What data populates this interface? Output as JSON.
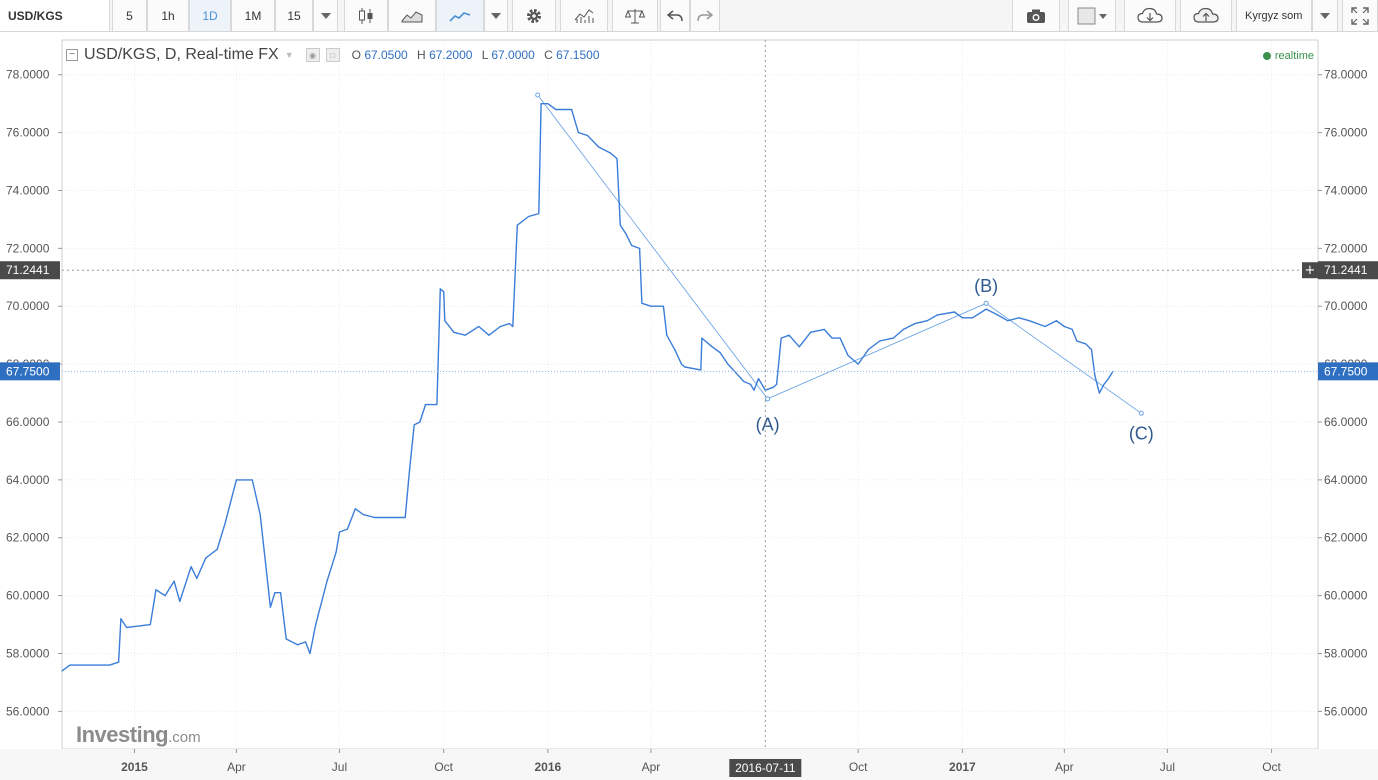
{
  "toolbar": {
    "symbol": "USD/KGS",
    "intervals": [
      "5",
      "1h",
      "1D",
      "1M",
      "15"
    ],
    "active_interval": "1D",
    "currency": "Kyrgyz som",
    "icons": [
      "dropdown-icon",
      "candles-icon",
      "area-icon",
      "line-icon",
      "dropdown-icon",
      "gear-icon",
      "indicators-icon",
      "compare-icon",
      "undo-icon",
      "redo-icon",
      "camera-icon",
      "color-swatch-icon",
      "cloud-download-icon",
      "cloud-upload-icon",
      "fullscreen-icon"
    ]
  },
  "legend": {
    "title": "USD/KGS, D, Real-time FX",
    "o_label": "O",
    "o": "67.0500",
    "h_label": "H",
    "h": "67.2000",
    "l_label": "L",
    "l": "67.0000",
    "c_label": "C",
    "c": "67.1500",
    "realtime": "realtime"
  },
  "crosshair": {
    "price": "71.2441",
    "date": "2016-07-11"
  },
  "last_price": "67.7500",
  "logo": {
    "bold": "Investing",
    "suffix": ".com"
  },
  "colors": {
    "line": "#3b7dd8",
    "last_price": "#2f6fc2",
    "crosshair_label": "#4a4a4a",
    "realtime": "#39914b"
  },
  "chart_data": {
    "type": "line",
    "y_ticks": [
      "78.0000",
      "76.0000",
      "74.0000",
      "72.0000",
      "70.0000",
      "68.0000",
      "66.0000",
      "64.0000",
      "62.0000",
      "60.0000",
      "58.0000",
      "56.0000"
    ],
    "ylim": [
      54.7,
      79.2
    ],
    "x_ticks": [
      {
        "label": "2015",
        "date": "2015-01-01",
        "major": true
      },
      {
        "label": "Apr",
        "date": "2015-04-01"
      },
      {
        "label": "Jul",
        "date": "2015-07-01"
      },
      {
        "label": "Oct",
        "date": "2015-10-01"
      },
      {
        "label": "2016",
        "date": "2016-01-01",
        "major": true
      },
      {
        "label": "Apr",
        "date": "2016-04-01"
      },
      {
        "label": "Oct",
        "date": "2016-10-01"
      },
      {
        "label": "2017",
        "date": "2017-01-01",
        "major": true
      },
      {
        "label": "Apr",
        "date": "2017-04-01"
      },
      {
        "label": "Jul",
        "date": "2017-07-01"
      },
      {
        "label": "Oct",
        "date": "2017-10-01"
      }
    ],
    "xlim": [
      "2014-10-29",
      "2017-11-11"
    ],
    "series": [
      {
        "points": [
          [
            "2014-10-29",
            57.4
          ],
          [
            "2014-11-05",
            57.6
          ],
          [
            "2014-11-20",
            57.6
          ],
          [
            "2014-12-10",
            57.6
          ],
          [
            "2014-12-18",
            57.7
          ],
          [
            "2014-12-20",
            59.2
          ],
          [
            "2014-12-25",
            58.9
          ],
          [
            "2015-01-15",
            59.0
          ],
          [
            "2015-01-20",
            60.2
          ],
          [
            "2015-01-28",
            60.0
          ],
          [
            "2015-02-05",
            60.5
          ],
          [
            "2015-02-10",
            59.8
          ],
          [
            "2015-02-20",
            61.0
          ],
          [
            "2015-02-25",
            60.6
          ],
          [
            "2015-03-05",
            61.3
          ],
          [
            "2015-03-15",
            61.6
          ],
          [
            "2015-03-22",
            62.5
          ],
          [
            "2015-03-28",
            63.4
          ],
          [
            "2015-04-01",
            64.0
          ],
          [
            "2015-04-15",
            64.0
          ],
          [
            "2015-04-22",
            62.8
          ],
          [
            "2015-05-01",
            59.6
          ],
          [
            "2015-05-05",
            60.1
          ],
          [
            "2015-05-10",
            60.1
          ],
          [
            "2015-05-15",
            58.5
          ],
          [
            "2015-05-25",
            58.3
          ],
          [
            "2015-06-01",
            58.4
          ],
          [
            "2015-06-05",
            58.0
          ],
          [
            "2015-06-10",
            59.0
          ],
          [
            "2015-06-20",
            60.5
          ],
          [
            "2015-06-28",
            61.5
          ],
          [
            "2015-07-01",
            62.2
          ],
          [
            "2015-07-08",
            62.3
          ],
          [
            "2015-07-15",
            63.0
          ],
          [
            "2015-07-22",
            62.8
          ],
          [
            "2015-08-01",
            62.7
          ],
          [
            "2015-08-20",
            62.7
          ],
          [
            "2015-08-28",
            62.7
          ],
          [
            "2015-09-01",
            64.4
          ],
          [
            "2015-09-05",
            65.9
          ],
          [
            "2015-09-10",
            66.0
          ],
          [
            "2015-09-15",
            66.6
          ],
          [
            "2015-09-25",
            66.6
          ],
          [
            "2015-09-28",
            70.6
          ],
          [
            "2015-10-01",
            70.5
          ],
          [
            "2015-10-02",
            69.5
          ],
          [
            "2015-10-10",
            69.1
          ],
          [
            "2015-10-20",
            69.0
          ],
          [
            "2015-11-01",
            69.3
          ],
          [
            "2015-11-10",
            69.0
          ],
          [
            "2015-11-20",
            69.3
          ],
          [
            "2015-11-28",
            69.4
          ],
          [
            "2015-12-01",
            69.3
          ],
          [
            "2015-12-05",
            72.8
          ],
          [
            "2015-12-15",
            73.1
          ],
          [
            "2015-12-24",
            73.2
          ],
          [
            "2015-12-26",
            77.0
          ],
          [
            "2016-01-01",
            77.0
          ],
          [
            "2016-01-08",
            76.8
          ],
          [
            "2016-01-22",
            76.8
          ],
          [
            "2016-01-28",
            76.0
          ],
          [
            "2016-02-05",
            75.9
          ],
          [
            "2016-02-15",
            75.5
          ],
          [
            "2016-02-25",
            75.3
          ],
          [
            "2016-03-02",
            75.1
          ],
          [
            "2016-03-05",
            72.8
          ],
          [
            "2016-03-10",
            72.5
          ],
          [
            "2016-03-15",
            72.1
          ],
          [
            "2016-03-22",
            72.0
          ],
          [
            "2016-03-24",
            70.1
          ],
          [
            "2016-04-01",
            70.0
          ],
          [
            "2016-04-12",
            70.0
          ],
          [
            "2016-04-15",
            69.0
          ],
          [
            "2016-04-22",
            68.5
          ],
          [
            "2016-04-28",
            68.0
          ],
          [
            "2016-05-01",
            67.9
          ],
          [
            "2016-05-15",
            67.8
          ],
          [
            "2016-05-16",
            68.9
          ],
          [
            "2016-05-25",
            68.6
          ],
          [
            "2016-06-01",
            68.4
          ],
          [
            "2016-06-08",
            68.0
          ],
          [
            "2016-06-15",
            67.7
          ],
          [
            "2016-06-22",
            67.4
          ],
          [
            "2016-06-28",
            67.3
          ],
          [
            "2016-07-01",
            67.1
          ],
          [
            "2016-07-05",
            67.5
          ],
          [
            "2016-07-11",
            67.1
          ],
          [
            "2016-07-18",
            67.2
          ],
          [
            "2016-07-21",
            67.3
          ],
          [
            "2016-07-25",
            68.9
          ],
          [
            "2016-08-01",
            69.0
          ],
          [
            "2016-08-10",
            68.6
          ],
          [
            "2016-08-20",
            69.1
          ],
          [
            "2016-09-01",
            69.2
          ],
          [
            "2016-09-08",
            68.9
          ],
          [
            "2016-09-15",
            68.9
          ],
          [
            "2016-09-22",
            68.3
          ],
          [
            "2016-10-01",
            68.0
          ],
          [
            "2016-10-10",
            68.5
          ],
          [
            "2016-10-20",
            68.8
          ],
          [
            "2016-11-01",
            68.9
          ],
          [
            "2016-11-10",
            69.2
          ],
          [
            "2016-11-20",
            69.4
          ],
          [
            "2016-12-01",
            69.5
          ],
          [
            "2016-12-10",
            69.7
          ],
          [
            "2016-12-25",
            69.8
          ],
          [
            "2017-01-01",
            69.6
          ],
          [
            "2017-01-10",
            69.6
          ],
          [
            "2017-01-22",
            69.9
          ],
          [
            "2017-02-01",
            69.7
          ],
          [
            "2017-02-10",
            69.5
          ],
          [
            "2017-02-20",
            69.6
          ],
          [
            "2017-03-01",
            69.5
          ],
          [
            "2017-03-15",
            69.3
          ],
          [
            "2017-03-25",
            69.5
          ],
          [
            "2017-04-01",
            69.3
          ],
          [
            "2017-04-08",
            69.2
          ],
          [
            "2017-04-12",
            68.8
          ],
          [
            "2017-04-20",
            68.7
          ],
          [
            "2017-04-25",
            68.5
          ],
          [
            "2017-04-28",
            67.6
          ],
          [
            "2017-05-02",
            67.0
          ],
          [
            "2017-05-06",
            67.3
          ],
          [
            "2017-05-10",
            67.5
          ],
          [
            "2017-05-14",
            67.75
          ]
        ]
      }
    ],
    "annotations": [
      {
        "type": "line",
        "from": [
          "2015-12-23",
          77.3
        ],
        "to": [
          "2016-07-13",
          66.8
        ]
      },
      {
        "type": "line",
        "from": [
          "2016-07-13",
          66.8
        ],
        "to": [
          "2017-01-22",
          70.1
        ]
      },
      {
        "type": "line",
        "from": [
          "2017-01-22",
          70.1
        ],
        "to": [
          "2017-06-08",
          66.3
        ]
      },
      {
        "type": "label",
        "text": "(A)",
        "at": [
          "2016-07-13",
          65.7
        ]
      },
      {
        "type": "label",
        "text": "(B)",
        "at": [
          "2017-01-22",
          70.5
        ]
      },
      {
        "type": "label",
        "text": "(C)",
        "at": [
          "2017-06-08",
          65.4
        ]
      }
    ]
  }
}
